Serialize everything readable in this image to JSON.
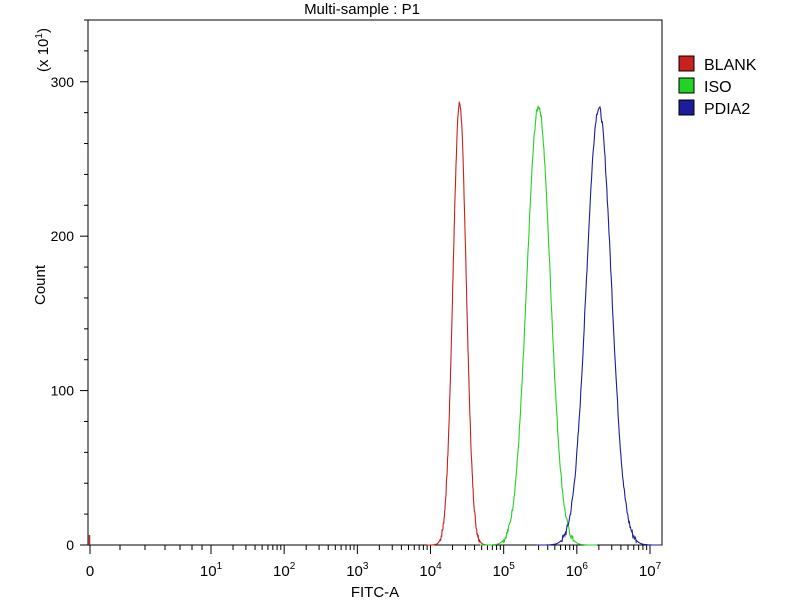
{
  "chart_data": {
    "type": "line",
    "title": "Multi-sample : P1",
    "xlabel": "FITC-A",
    "ylabel": "Count",
    "y_multiplier": "(x 10",
    "y_multiplier_exp": "1",
    "y_multiplier_close": ")",
    "xscale": "log",
    "x_ticks": [
      {
        "label": "0",
        "exp": ""
      },
      {
        "label": "10",
        "exp": "1"
      },
      {
        "label": "10",
        "exp": "2"
      },
      {
        "label": "10",
        "exp": "3"
      },
      {
        "label": "10",
        "exp": "4"
      },
      {
        "label": "10",
        "exp": "5"
      },
      {
        "label": "10",
        "exp": "6"
      },
      {
        "label": "10",
        "exp": "7"
      }
    ],
    "y_ticks": [
      "0",
      "100",
      "200",
      "300"
    ],
    "ylim": [
      0,
      340
    ],
    "legend_position": "right",
    "series": [
      {
        "name": "BLANK",
        "color": "#c8201c",
        "peak_x": 25000,
        "peak_y": 286,
        "width_decades": 0.09
      },
      {
        "name": "ISO",
        "color": "#22d322",
        "peak_x": 300000,
        "peak_y": 284,
        "width_decades": 0.16
      },
      {
        "name": "PDIA2",
        "color": "#1c1c9c",
        "peak_x": 2000000,
        "peak_y": 283,
        "width_decades": 0.17
      }
    ]
  }
}
